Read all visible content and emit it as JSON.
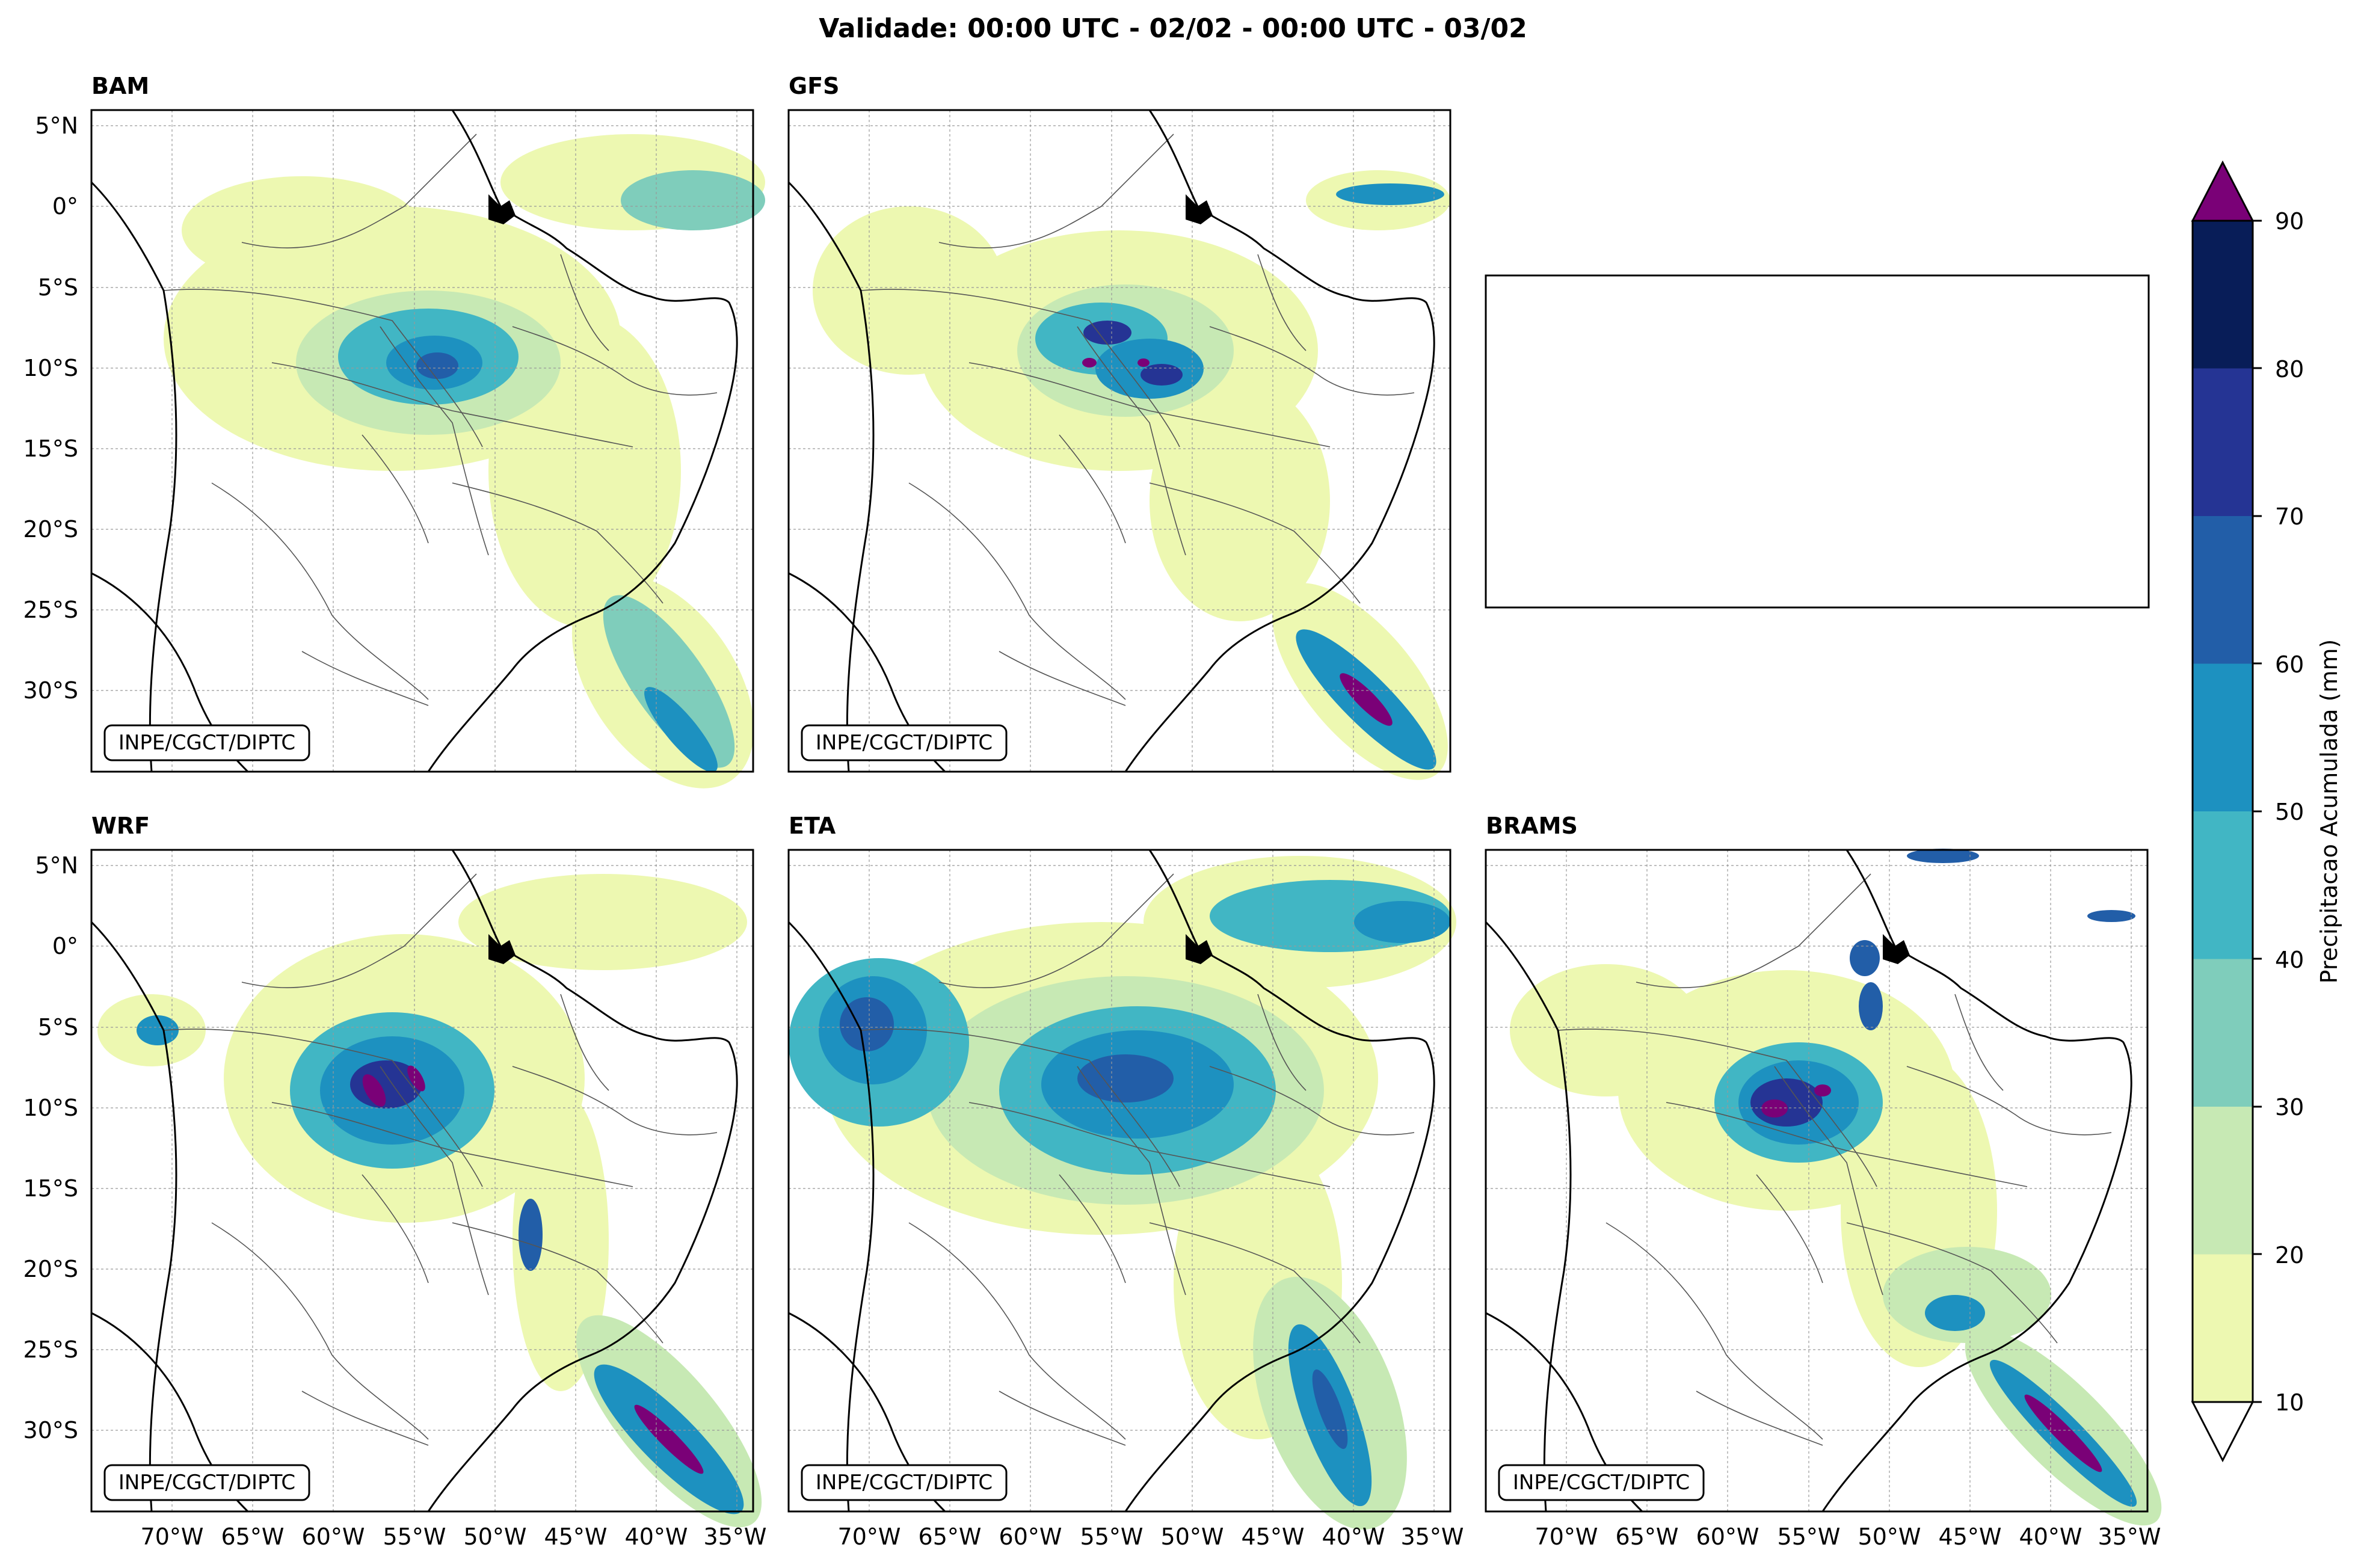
{
  "figure": {
    "title": "Validade: 00:00 UTC - 02/02 - 00:00 UTC - 03/02"
  },
  "panels": [
    {
      "label": "BAM",
      "watermark": "INPE/CGCT/DIPTC",
      "lat_labels": true,
      "lon_labels": false
    },
    {
      "label": "GFS",
      "watermark": "INPE/CGCT/DIPTC",
      "lat_labels": false,
      "lon_labels": false
    },
    {
      "label": "",
      "watermark": "",
      "lat_labels": false,
      "lon_labels": false,
      "empty": true
    },
    {
      "label": "WRF",
      "watermark": "INPE/CGCT/DIPTC",
      "lat_labels": true,
      "lon_labels": true
    },
    {
      "label": "ETA",
      "watermark": "INPE/CGCT/DIPTC",
      "lat_labels": false,
      "lon_labels": true
    },
    {
      "label": "BRAMS",
      "watermark": "INPE/CGCT/DIPTC",
      "lat_labels": false,
      "lon_labels": true
    }
  ],
  "axes": {
    "lat_ticks": [
      "5°N",
      "0°",
      "5°S",
      "10°S",
      "15°S",
      "20°S",
      "25°S",
      "30°S"
    ],
    "lat_values": [
      5,
      0,
      -5,
      -10,
      -15,
      -20,
      -25,
      -30
    ],
    "lon_ticks": [
      "70°W",
      "65°W",
      "60°W",
      "55°W",
      "50°W",
      "45°W",
      "40°W",
      "35°W"
    ],
    "lon_values": [
      -70,
      -65,
      -60,
      -55,
      -50,
      -45,
      -40,
      -35
    ],
    "lat_range": [
      -35,
      6
    ],
    "lon_range": [
      -75,
      -34
    ],
    "grid": true
  },
  "colorbar": {
    "label": "Precipitacao Acumulada (mm)",
    "ticks": [
      "10",
      "20",
      "30",
      "40",
      "50",
      "60",
      "70",
      "80",
      "90"
    ],
    "tick_values": [
      10,
      20,
      30,
      40,
      50,
      60,
      70,
      80,
      90
    ],
    "colors": [
      "#edf8b1",
      "#c7e9b4",
      "#7fcdbb",
      "#41b6c4",
      "#1d91c0",
      "#225ea8",
      "#253494",
      "#081d58"
    ],
    "over_color": "#7a0177",
    "under_color": "#ffffff"
  },
  "precip_colors": {
    "c10": "#edf8b1",
    "c20": "#c7e9b4",
    "c30": "#7fcdbb",
    "c40": "#41b6c4",
    "c50": "#1d91c0",
    "c60": "#225ea8",
    "c70": "#253494",
    "c80": "#081d58",
    "c90": "#7a0177"
  }
}
